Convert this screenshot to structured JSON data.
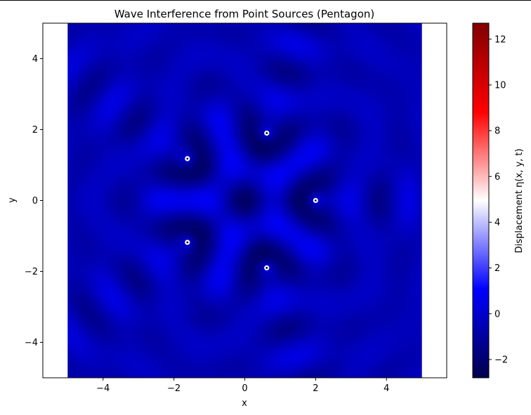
{
  "chart_data": {
    "type": "heatmap",
    "title": "Wave Interference from Point Sources (Pentagon)",
    "xlabel": "x",
    "ylabel": "y",
    "xlim": [
      -5.7,
      5.7
    ],
    "ylim": [
      -5,
      5
    ],
    "data_extent": [
      -5,
      5,
      -5,
      5
    ],
    "xticks": [
      -4,
      -2,
      0,
      2,
      4
    ],
    "xtick_labels": [
      "−4",
      "−2",
      "0",
      "2",
      "4"
    ],
    "yticks": [
      -4,
      -2,
      0,
      2,
      4
    ],
    "ytick_labels": [
      "−4",
      "−2",
      "0",
      "2",
      "4"
    ],
    "colormap": "seismic",
    "colorbar": {
      "label": "Displacement η(x, y, t)",
      "range": [
        -2.8,
        12.7
      ],
      "ticks": [
        -2,
        0,
        2,
        4,
        6,
        8,
        10,
        12
      ],
      "tick_labels": [
        "−2",
        "0",
        "2",
        "4",
        "6",
        "8",
        "10",
        "12"
      ]
    },
    "sources": [
      {
        "x": 2.0,
        "y": 0.0
      },
      {
        "x": 0.62,
        "y": 1.9
      },
      {
        "x": -1.62,
        "y": 1.18
      },
      {
        "x": -1.62,
        "y": -1.18
      },
      {
        "x": 0.62,
        "y": -1.9
      }
    ],
    "grid": false,
    "colors": {
      "cmap_low": "#00004c",
      "cmap_blue": "#0000ff",
      "cmap_mid": "#ffffff",
      "cmap_red": "#ff0000",
      "cmap_high": "#800000"
    }
  }
}
